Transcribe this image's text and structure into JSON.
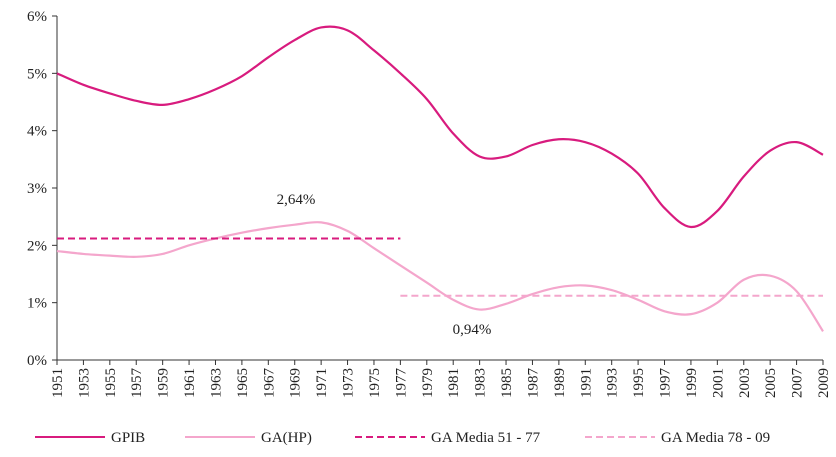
{
  "chart_data": {
    "type": "line",
    "x": [
      1951,
      1953,
      1955,
      1957,
      1959,
      1961,
      1963,
      1965,
      1967,
      1969,
      1971,
      1973,
      1975,
      1977,
      1979,
      1981,
      1983,
      1985,
      1987,
      1989,
      1991,
      1993,
      1995,
      1997,
      1999,
      2001,
      2003,
      2005,
      2007,
      2009
    ],
    "xlim": [
      1951,
      2009
    ],
    "xticks": [
      1951,
      1953,
      1955,
      1957,
      1959,
      1961,
      1963,
      1965,
      1967,
      1969,
      1971,
      1973,
      1975,
      1977,
      1979,
      1981,
      1983,
      1985,
      1987,
      1989,
      1991,
      1993,
      1995,
      1997,
      1999,
      2001,
      2003,
      2005,
      2007,
      2009
    ],
    "ylim": [
      0,
      6
    ],
    "yticks": [
      {
        "value": 0,
        "label": "0%"
      },
      {
        "value": 1,
        "label": "1%"
      },
      {
        "value": 2,
        "label": "2%"
      },
      {
        "value": 3,
        "label": "3%"
      },
      {
        "value": 4,
        "label": "4%"
      },
      {
        "value": 5,
        "label": "5%"
      },
      {
        "value": 6,
        "label": "6%"
      }
    ],
    "series": [
      {
        "name": "GPIB",
        "color": "#d81b7e",
        "dashed": false,
        "values": [
          5.0,
          4.8,
          4.65,
          4.52,
          4.45,
          4.55,
          4.72,
          4.95,
          5.28,
          5.58,
          5.8,
          5.75,
          5.4,
          5.0,
          4.55,
          3.95,
          3.55,
          3.55,
          3.75,
          3.85,
          3.8,
          3.6,
          3.25,
          2.65,
          2.32,
          2.6,
          3.2,
          3.65,
          3.8,
          3.58
        ]
      },
      {
        "name": "GA(HP)",
        "color": "#f4a6cc",
        "dashed": false,
        "values": [
          1.9,
          1.85,
          1.82,
          1.8,
          1.85,
          2.0,
          2.12,
          2.22,
          2.3,
          2.36,
          2.4,
          2.25,
          1.95,
          1.65,
          1.35,
          1.05,
          0.88,
          0.98,
          1.15,
          1.27,
          1.3,
          1.22,
          1.05,
          0.85,
          0.8,
          1.0,
          1.4,
          1.47,
          1.2,
          0.5
        ]
      },
      {
        "name": "GA Media 51 - 77",
        "color": "#d81b7e",
        "dashed": true,
        "x": [
          1951,
          1977
        ],
        "values": [
          2.12,
          2.12
        ]
      },
      {
        "name": "GA Media 78 - 09",
        "color": "#f4a6cc",
        "dashed": true,
        "x": [
          1977,
          2009
        ],
        "values": [
          1.12,
          1.12
        ]
      }
    ],
    "annotations": [
      "2,64%",
      "0,94%"
    ]
  }
}
